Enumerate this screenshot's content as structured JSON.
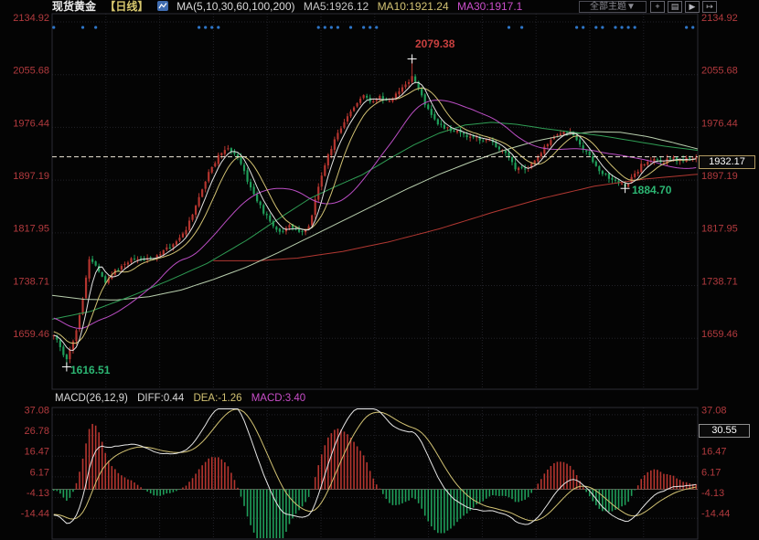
{
  "header": {
    "title": "现货黄金",
    "period": "【日线】",
    "ma_label": "MA(5,10,30,60,100,200)",
    "ma5": "MA5:1926.12",
    "ma10": "MA10:1921.24",
    "ma30": "MA30:1917.1",
    "theme": "全部主题▼",
    "tools": [
      {
        "name": "pan-icon",
        "glyph": "+"
      },
      {
        "name": "scale-icon",
        "glyph": "▤"
      },
      {
        "name": "play-icon",
        "glyph": "▶"
      },
      {
        "name": "export-icon",
        "glyph": "↦"
      }
    ]
  },
  "main": {
    "price_tag": "1932.17",
    "ann_high": "2079.38",
    "ann_low_start": "1616.51",
    "ann_low_recent": "1884.70"
  },
  "macd": {
    "name": "MACD(26,12,9)",
    "diff": "DIFF:0.44",
    "dea": "DEA:-1.26",
    "macd": "MACD:3.40",
    "right_box": "30.55"
  },
  "palette": {
    "axis_text": "#b23a3e",
    "candle_up": "#b5352f",
    "candle_down": "#1f9e5a",
    "ma5": "#e2e2e2",
    "ma10": "#d2c273",
    "ma30": "#bb4ec4",
    "ma60": "#2f9e55",
    "ma100": "#b9cfae",
    "ma200": "#b23832",
    "dif_line": "#e6e6e6",
    "dea_line": "#d2c273",
    "dashed_price_line": "#f0e8d8",
    "event_dots": "#2e76c8",
    "grid": "#222228",
    "frame": "#2c2c34",
    "annotation_green": "#2cb673",
    "annotation_red": "#c8403f"
  },
  "chart_data": [
    {
      "type": "candlestick",
      "title": "现货黄金 日线",
      "ylim": [
        1590,
        2140
      ],
      "y_ticks": [
        2134.92,
        2055.68,
        1976.44,
        1897.19,
        1817.95,
        1738.71,
        1659.46
      ],
      "last_price": 1932.17,
      "key_points": {
        "high": 2079.38,
        "low_start": 1616.51,
        "low_recent": 1884.7
      },
      "n_candles": 200,
      "history_prepend": {
        "bars": 40,
        "from": 1742,
        "to": 1662
      },
      "close_anchors": [
        [
          0,
          1662
        ],
        [
          0.01,
          1648
        ],
        [
          0.018,
          1628
        ],
        [
          0.03,
          1655
        ],
        [
          0.042,
          1700
        ],
        [
          0.055,
          1780
        ],
        [
          0.065,
          1768
        ],
        [
          0.08,
          1744
        ],
        [
          0.095,
          1760
        ],
        [
          0.11,
          1768
        ],
        [
          0.125,
          1781
        ],
        [
          0.14,
          1778
        ],
        [
          0.155,
          1777
        ],
        [
          0.17,
          1791
        ],
        [
          0.185,
          1801
        ],
        [
          0.2,
          1812
        ],
        [
          0.22,
          1855
        ],
        [
          0.24,
          1906
        ],
        [
          0.255,
          1932
        ],
        [
          0.272,
          1944
        ],
        [
          0.29,
          1924
        ],
        [
          0.31,
          1878
        ],
        [
          0.33,
          1844
        ],
        [
          0.35,
          1818
        ],
        [
          0.368,
          1830
        ],
        [
          0.385,
          1820
        ],
        [
          0.398,
          1828
        ],
        [
          0.412,
          1886
        ],
        [
          0.425,
          1930
        ],
        [
          0.44,
          1962
        ],
        [
          0.455,
          1988
        ],
        [
          0.47,
          2012
        ],
        [
          0.483,
          2028
        ],
        [
          0.495,
          2012
        ],
        [
          0.508,
          2022
        ],
        [
          0.52,
          2014
        ],
        [
          0.535,
          2028
        ],
        [
          0.548,
          2040
        ],
        [
          0.558,
          2052
        ],
        [
          0.565,
          2038
        ],
        [
          0.578,
          2012
        ],
        [
          0.592,
          1988
        ],
        [
          0.61,
          1976
        ],
        [
          0.63,
          1968
        ],
        [
          0.65,
          1962
        ],
        [
          0.668,
          1958
        ],
        [
          0.685,
          1952
        ],
        [
          0.702,
          1938
        ],
        [
          0.718,
          1916
        ],
        [
          0.735,
          1912
        ],
        [
          0.752,
          1928
        ],
        [
          0.768,
          1952
        ],
        [
          0.785,
          1968
        ],
        [
          0.8,
          1972
        ],
        [
          0.815,
          1958
        ],
        [
          0.832,
          1934
        ],
        [
          0.848,
          1914
        ],
        [
          0.865,
          1900
        ],
        [
          0.882,
          1892
        ],
        [
          0.89,
          1888
        ],
        [
          0.902,
          1902
        ],
        [
          0.915,
          1920
        ],
        [
          0.928,
          1928
        ],
        [
          0.945,
          1924
        ],
        [
          0.96,
          1930
        ],
        [
          0.975,
          1927
        ],
        [
          1,
          1932.17
        ]
      ],
      "special_candles": {
        "low_start": {
          "frac": 0.02,
          "low": 1616.51
        },
        "high": {
          "frac": 0.558,
          "high": 2079.38
        },
        "low_recent": {
          "frac": 0.89,
          "low": 1884.7
        }
      },
      "ma_computed_periods": [
        5,
        10,
        30
      ],
      "ma_overlay_anchors": {
        "ma60": [
          [
            0,
            1688
          ],
          [
            0.06,
            1700
          ],
          [
            0.12,
            1722
          ],
          [
            0.18,
            1746
          ],
          [
            0.24,
            1772
          ],
          [
            0.3,
            1806
          ],
          [
            0.36,
            1845
          ],
          [
            0.4,
            1870
          ],
          [
            0.44,
            1888
          ],
          [
            0.48,
            1905
          ],
          [
            0.52,
            1928
          ],
          [
            0.56,
            1950
          ],
          [
            0.6,
            1968
          ],
          [
            0.64,
            1980
          ],
          [
            0.68,
            1984
          ],
          [
            0.72,
            1981
          ],
          [
            0.76,
            1975
          ],
          [
            0.8,
            1970
          ],
          [
            0.85,
            1964
          ],
          [
            0.9,
            1956
          ],
          [
            0.95,
            1948
          ],
          [
            1,
            1942
          ]
        ],
        "ma100": [
          [
            0,
            1724
          ],
          [
            0.05,
            1718
          ],
          [
            0.1,
            1717
          ],
          [
            0.15,
            1722
          ],
          [
            0.2,
            1732
          ],
          [
            0.25,
            1748
          ],
          [
            0.3,
            1766
          ],
          [
            0.35,
            1788
          ],
          [
            0.4,
            1812
          ],
          [
            0.45,
            1836
          ],
          [
            0.5,
            1860
          ],
          [
            0.55,
            1884
          ],
          [
            0.6,
            1906
          ],
          [
            0.65,
            1925
          ],
          [
            0.7,
            1942
          ],
          [
            0.75,
            1956
          ],
          [
            0.8,
            1966
          ],
          [
            0.84,
            1970
          ],
          [
            0.88,
            1969
          ],
          [
            0.92,
            1963
          ],
          [
            0.96,
            1954
          ],
          [
            1,
            1944
          ]
        ],
        "ma200": [
          [
            0.25,
            1776
          ],
          [
            0.32,
            1776
          ],
          [
            0.38,
            1780
          ],
          [
            0.45,
            1790
          ],
          [
            0.52,
            1804
          ],
          [
            0.6,
            1824
          ],
          [
            0.68,
            1848
          ],
          [
            0.76,
            1870
          ],
          [
            0.84,
            1888
          ],
          [
            0.92,
            1899
          ],
          [
            1,
            1906
          ]
        ]
      }
    },
    {
      "type": "macd",
      "params": [
        26,
        12,
        9
      ],
      "diff": 0.44,
      "dea": -1.26,
      "macd": 3.4,
      "y_ticks": [
        37.08,
        26.78,
        16.47,
        6.17,
        -4.13,
        -14.44
      ],
      "y_ticks_right": [
        "37.08",
        "30.55",
        "16.47",
        "6.17",
        "-4.13",
        "-14.44"
      ],
      "note": "histogram = 2*(DIF-DEA) computed from close series EMA(12,26,9)"
    }
  ]
}
